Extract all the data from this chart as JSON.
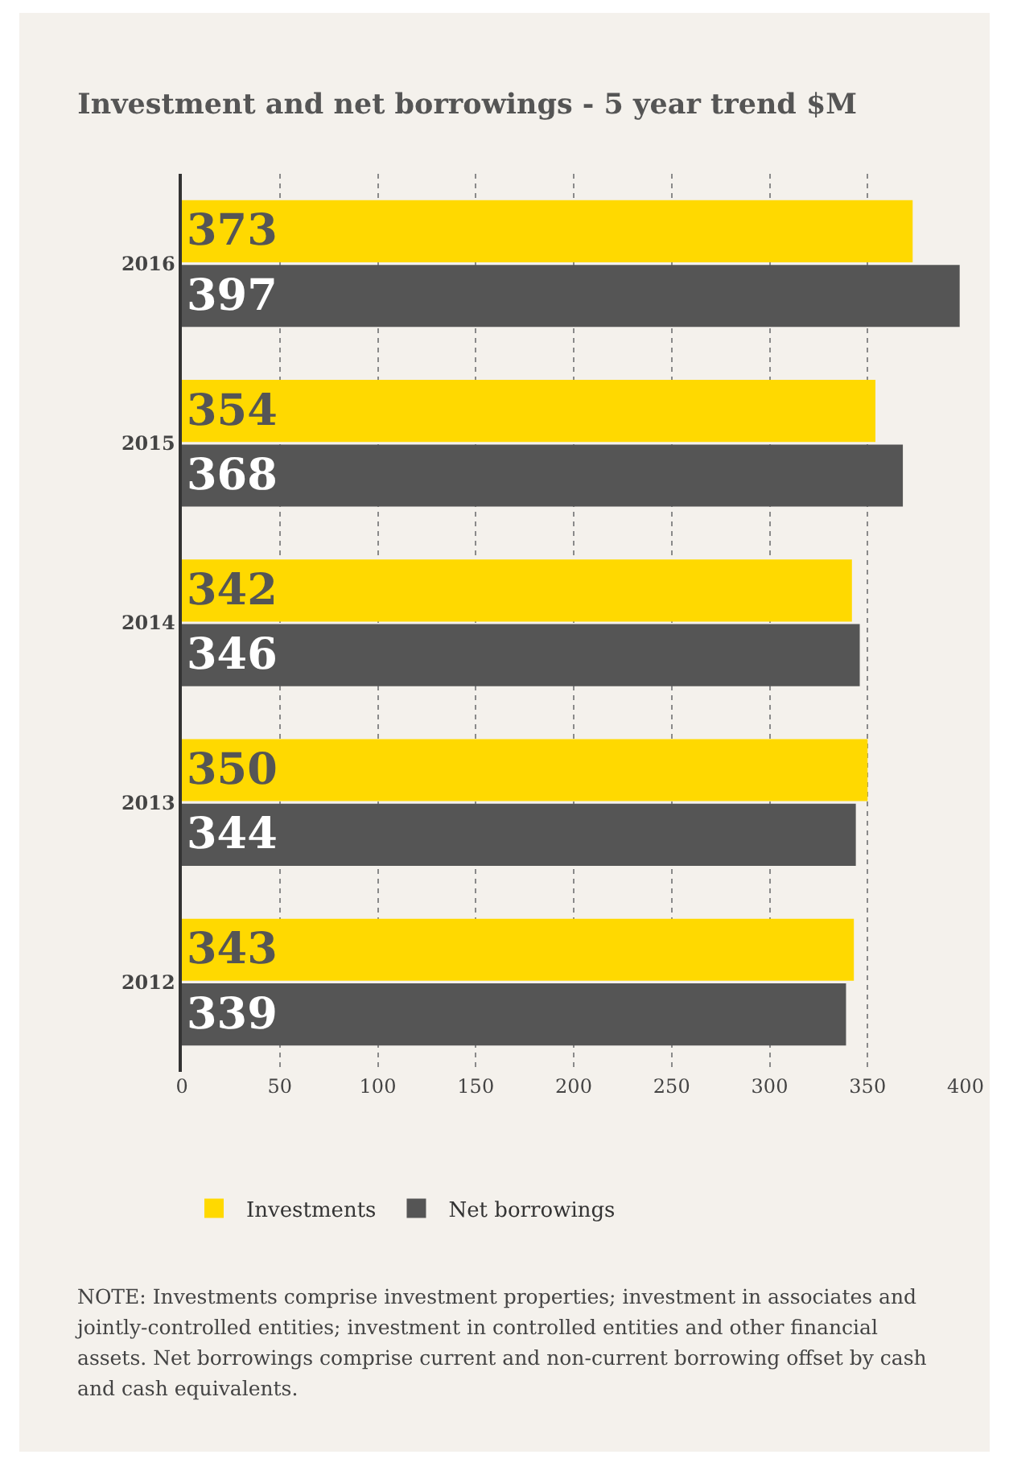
{
  "chart_data": {
    "type": "bar",
    "orientation": "horizontal",
    "title": "Investment and net borrowings - 5 year trend $M",
    "categories": [
      "2016",
      "2015",
      "2014",
      "2013",
      "2012"
    ],
    "series": [
      {
        "name": "Investments",
        "color": "#ffd900",
        "values": [
          373,
          354,
          342,
          350,
          343
        ]
      },
      {
        "name": "Net borrowings",
        "color": "#555555",
        "values": [
          397,
          368,
          346,
          344,
          339
        ]
      }
    ],
    "xlim": [
      0,
      400
    ],
    "xticks": [
      0,
      50,
      100,
      150,
      200,
      250,
      300,
      350,
      400
    ],
    "grid": "x",
    "legend": "bottom",
    "data_labels": true,
    "annotations": [
      "NOTE: Investments comprise investment properties; investment in associates and jointly-controlled entities; investment in controlled entities and other financial assets. Net borrowings comprise current and non-current borrowing offset by cash and cash equivalents."
    ]
  }
}
